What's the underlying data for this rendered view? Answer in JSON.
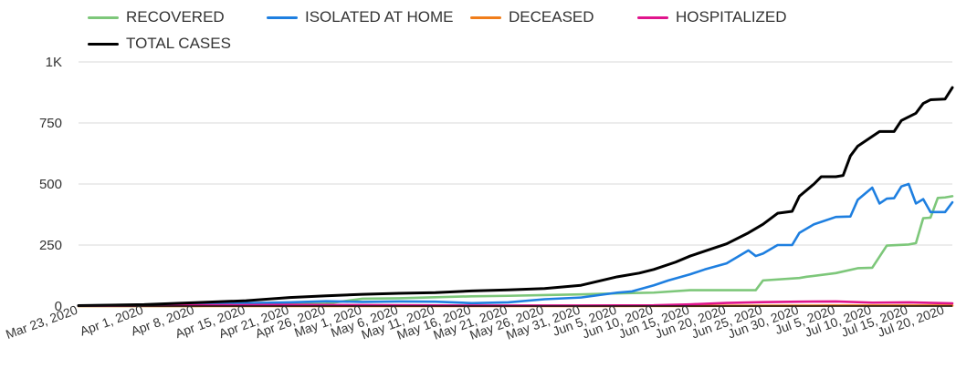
{
  "chart_data": {
    "type": "line",
    "title": "",
    "xlabel": "",
    "ylabel": "",
    "x_start": "Mar 23, 2020",
    "x_end": "Jul 21, 2020",
    "x_ticks": [
      "Mar 23, 2020",
      "Apr 1, 2020",
      "Apr 8, 2020",
      "Apr 15, 2020",
      "Apr 21, 2020",
      "Apr 26, 2020",
      "May 1, 2020",
      "May 6, 2020",
      "May 11, 2020",
      "May 16, 2020",
      "May 21, 2020",
      "May 26, 2020",
      "May 31, 2020",
      "Jun 5, 2020",
      "Jun 10, 2020",
      "Jun 15, 2020",
      "Jun 20, 2020",
      "Jun 25, 2020",
      "Jun 30, 2020",
      "Jul 5, 2020",
      "Jul 10, 2020",
      "Jul 15, 2020",
      "Jul 20, 2020"
    ],
    "y_ticks": [
      {
        "value": 0,
        "label": "0"
      },
      {
        "value": 250,
        "label": "250"
      },
      {
        "value": 500,
        "label": "500"
      },
      {
        "value": 750,
        "label": "750"
      },
      {
        "value": 1000,
        "label": "1K"
      }
    ],
    "ylim": [
      0,
      1000
    ],
    "grid": true,
    "legend": "top-left",
    "series": [
      {
        "name": "RECOVERED",
        "color": "#7dc77a",
        "points": [
          {
            "x": "Mar 23, 2020",
            "y": 0
          },
          {
            "x": "Apr 1, 2020",
            "y": 0
          },
          {
            "x": "Apr 8, 2020",
            "y": 0
          },
          {
            "x": "Apr 15, 2020",
            "y": 5
          },
          {
            "x": "Apr 21, 2020",
            "y": 7
          },
          {
            "x": "Apr 26, 2020",
            "y": 10
          },
          {
            "x": "May 1, 2020",
            "y": 30
          },
          {
            "x": "May 6, 2020",
            "y": 32
          },
          {
            "x": "May 11, 2020",
            "y": 36
          },
          {
            "x": "May 16, 2020",
            "y": 40
          },
          {
            "x": "May 21, 2020",
            "y": 42
          },
          {
            "x": "May 26, 2020",
            "y": 45
          },
          {
            "x": "May 31, 2020",
            "y": 48
          },
          {
            "x": "Jun 5, 2020",
            "y": 52
          },
          {
            "x": "Jun 10, 2020",
            "y": 55
          },
          {
            "x": "Jun 15, 2020",
            "y": 65
          },
          {
            "x": "Jun 20, 2020",
            "y": 65
          },
          {
            "x": "Jun 24, 2020",
            "y": 65
          },
          {
            "x": "Jun 25, 2020",
            "y": 105
          },
          {
            "x": "Jun 30, 2020",
            "y": 115
          },
          {
            "x": "Jul 1, 2020",
            "y": 120
          },
          {
            "x": "Jul 5, 2020",
            "y": 135
          },
          {
            "x": "Jul 8, 2020",
            "y": 155
          },
          {
            "x": "Jul 10, 2020",
            "y": 157
          },
          {
            "x": "Jul 12, 2020",
            "y": 248
          },
          {
            "x": "Jul 15, 2020",
            "y": 252
          },
          {
            "x": "Jul 16, 2020",
            "y": 258
          },
          {
            "x": "Jul 17, 2020",
            "y": 360
          },
          {
            "x": "Jul 18, 2020",
            "y": 362
          },
          {
            "x": "Jul 19, 2020",
            "y": 443
          },
          {
            "x": "Jul 20, 2020",
            "y": 445
          },
          {
            "x": "Jul 21, 2020",
            "y": 450
          }
        ]
      },
      {
        "name": "ISOLATED AT HOME",
        "color": "#1e7fe0",
        "points": [
          {
            "x": "Mar 23, 2020",
            "y": 2
          },
          {
            "x": "Apr 1, 2020",
            "y": 5
          },
          {
            "x": "Apr 8, 2020",
            "y": 8
          },
          {
            "x": "Apr 15, 2020",
            "y": 12
          },
          {
            "x": "Apr 21, 2020",
            "y": 15
          },
          {
            "x": "Apr 26, 2020",
            "y": 20
          },
          {
            "x": "May 1, 2020",
            "y": 17
          },
          {
            "x": "May 6, 2020",
            "y": 19
          },
          {
            "x": "May 11, 2020",
            "y": 18
          },
          {
            "x": "May 16, 2020",
            "y": 12
          },
          {
            "x": "May 21, 2020",
            "y": 15
          },
          {
            "x": "May 26, 2020",
            "y": 28
          },
          {
            "x": "May 31, 2020",
            "y": 35
          },
          {
            "x": "Jun 5, 2020",
            "y": 55
          },
          {
            "x": "Jun 7, 2020",
            "y": 60
          },
          {
            "x": "Jun 10, 2020",
            "y": 85
          },
          {
            "x": "Jun 12, 2020",
            "y": 105
          },
          {
            "x": "Jun 15, 2020",
            "y": 130
          },
          {
            "x": "Jun 17, 2020",
            "y": 150
          },
          {
            "x": "Jun 20, 2020",
            "y": 175
          },
          {
            "x": "Jun 23, 2020",
            "y": 228
          },
          {
            "x": "Jun 24, 2020",
            "y": 205
          },
          {
            "x": "Jun 25, 2020",
            "y": 215
          },
          {
            "x": "Jun 27, 2020",
            "y": 250
          },
          {
            "x": "Jun 29, 2020",
            "y": 250
          },
          {
            "x": "Jun 30, 2020",
            "y": 300
          },
          {
            "x": "Jul 2, 2020",
            "y": 335
          },
          {
            "x": "Jul 5, 2020",
            "y": 365
          },
          {
            "x": "Jul 7, 2020",
            "y": 367
          },
          {
            "x": "Jul 8, 2020",
            "y": 435
          },
          {
            "x": "Jul 10, 2020",
            "y": 485
          },
          {
            "x": "Jul 11, 2020",
            "y": 420
          },
          {
            "x": "Jul 12, 2020",
            "y": 440
          },
          {
            "x": "Jul 13, 2020",
            "y": 442
          },
          {
            "x": "Jul 14, 2020",
            "y": 490
          },
          {
            "x": "Jul 15, 2020",
            "y": 500
          },
          {
            "x": "Jul 16, 2020",
            "y": 420
          },
          {
            "x": "Jul 17, 2020",
            "y": 438
          },
          {
            "x": "Jul 18, 2020",
            "y": 385
          },
          {
            "x": "Jul 20, 2020",
            "y": 385
          },
          {
            "x": "Jul 21, 2020",
            "y": 425
          }
        ]
      },
      {
        "name": "DECEASED",
        "color": "#f07d1a",
        "points": [
          {
            "x": "Mar 23, 2020",
            "y": 0
          },
          {
            "x": "May 31, 2020",
            "y": 0
          },
          {
            "x": "Jun 20, 2020",
            "y": 1
          },
          {
            "x": "Jul 5, 2020",
            "y": 2
          },
          {
            "x": "Jul 21, 2020",
            "y": 2
          }
        ]
      },
      {
        "name": "HOSPITALIZED",
        "color": "#e0148c",
        "points": [
          {
            "x": "Mar 23, 2020",
            "y": 1
          },
          {
            "x": "Apr 8, 2020",
            "y": 3
          },
          {
            "x": "Apr 21, 2020",
            "y": 5
          },
          {
            "x": "May 1, 2020",
            "y": 4
          },
          {
            "x": "May 16, 2020",
            "y": 2
          },
          {
            "x": "May 31, 2020",
            "y": 2
          },
          {
            "x": "Jun 10, 2020",
            "y": 3
          },
          {
            "x": "Jun 15, 2020",
            "y": 7
          },
          {
            "x": "Jun 20, 2020",
            "y": 13
          },
          {
            "x": "Jun 25, 2020",
            "y": 16
          },
          {
            "x": "Jun 30, 2020",
            "y": 18
          },
          {
            "x": "Jul 5, 2020",
            "y": 19
          },
          {
            "x": "Jul 10, 2020",
            "y": 14
          },
          {
            "x": "Jul 15, 2020",
            "y": 15
          },
          {
            "x": "Jul 21, 2020",
            "y": 11
          }
        ]
      },
      {
        "name": "TOTAL CASES",
        "color": "#000000",
        "points": [
          {
            "x": "Mar 23, 2020",
            "y": 2
          },
          {
            "x": "Apr 1, 2020",
            "y": 6
          },
          {
            "x": "Apr 8, 2020",
            "y": 14
          },
          {
            "x": "Apr 15, 2020",
            "y": 22
          },
          {
            "x": "Apr 21, 2020",
            "y": 35
          },
          {
            "x": "Apr 26, 2020",
            "y": 42
          },
          {
            "x": "May 1, 2020",
            "y": 48
          },
          {
            "x": "May 6, 2020",
            "y": 52
          },
          {
            "x": "May 11, 2020",
            "y": 55
          },
          {
            "x": "May 16, 2020",
            "y": 62
          },
          {
            "x": "May 21, 2020",
            "y": 66
          },
          {
            "x": "May 26, 2020",
            "y": 72
          },
          {
            "x": "May 31, 2020",
            "y": 85
          },
          {
            "x": "Jun 5, 2020",
            "y": 120
          },
          {
            "x": "Jun 8, 2020",
            "y": 135
          },
          {
            "x": "Jun 10, 2020",
            "y": 150
          },
          {
            "x": "Jun 13, 2020",
            "y": 180
          },
          {
            "x": "Jun 15, 2020",
            "y": 205
          },
          {
            "x": "Jun 17, 2020",
            "y": 225
          },
          {
            "x": "Jun 20, 2020",
            "y": 255
          },
          {
            "x": "Jun 23, 2020",
            "y": 300
          },
          {
            "x": "Jun 25, 2020",
            "y": 335
          },
          {
            "x": "Jun 27, 2020",
            "y": 380
          },
          {
            "x": "Jun 29, 2020",
            "y": 388
          },
          {
            "x": "Jun 30, 2020",
            "y": 450
          },
          {
            "x": "Jul 2, 2020",
            "y": 500
          },
          {
            "x": "Jul 3, 2020",
            "y": 530
          },
          {
            "x": "Jul 5, 2020",
            "y": 530
          },
          {
            "x": "Jul 6, 2020",
            "y": 535
          },
          {
            "x": "Jul 7, 2020",
            "y": 615
          },
          {
            "x": "Jul 8, 2020",
            "y": 655
          },
          {
            "x": "Jul 10, 2020",
            "y": 695
          },
          {
            "x": "Jul 11, 2020",
            "y": 715
          },
          {
            "x": "Jul 13, 2020",
            "y": 715
          },
          {
            "x": "Jul 14, 2020",
            "y": 760
          },
          {
            "x": "Jul 15, 2020",
            "y": 775
          },
          {
            "x": "Jul 16, 2020",
            "y": 790
          },
          {
            "x": "Jul 17, 2020",
            "y": 830
          },
          {
            "x": "Jul 18, 2020",
            "y": 845
          },
          {
            "x": "Jul 20, 2020",
            "y": 848
          },
          {
            "x": "Jul 21, 2020",
            "y": 895
          }
        ]
      }
    ]
  }
}
